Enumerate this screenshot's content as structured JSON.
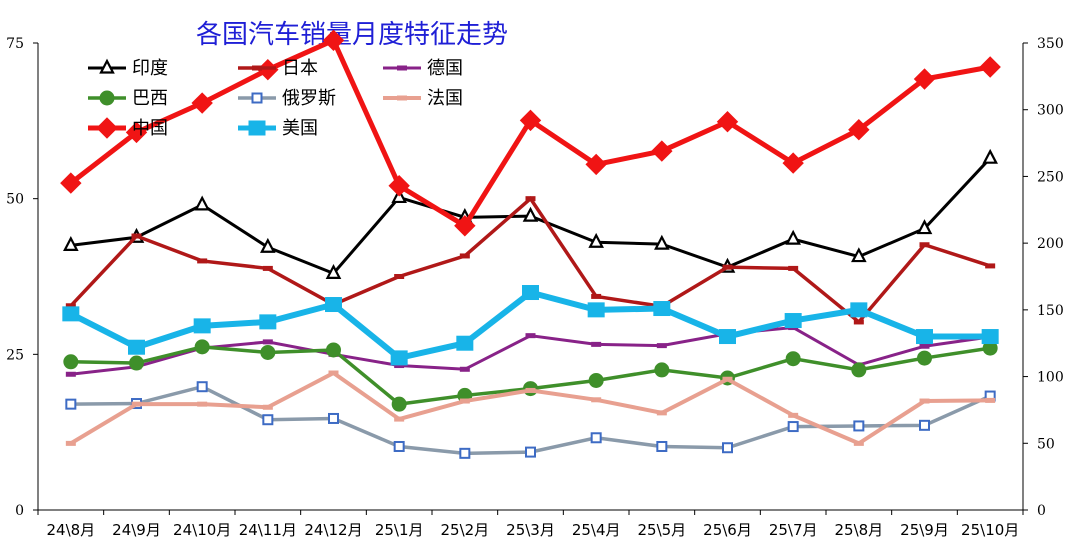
{
  "chart_data": {
    "type": "line",
    "title": "各国汽车销量月度特征走势",
    "categories": [
      "24\\8月",
      "24\\9月",
      "24\\10月",
      "24\\11月",
      "24\\12月",
      "25\\1月",
      "25\\2月",
      "25\\3月",
      "25\\4月",
      "25\\5月",
      "25\\6月",
      "25\\7月",
      "25\\8月",
      "25\\9月",
      "25\\10月"
    ],
    "y_left": {
      "min": 0,
      "max": 75,
      "ticks": [
        "0",
        "25",
        "50",
        "75"
      ]
    },
    "y_right": {
      "min": 0,
      "max": 350,
      "ticks": [
        "0",
        "50",
        "100",
        "150",
        "200",
        "250",
        "300",
        "350"
      ]
    },
    "legend_position": "top-left",
    "grid": false,
    "series": [
      {
        "name": "印度",
        "axis": "left",
        "color": "#000000",
        "marker": "triangle",
        "width": 3,
        "values": [
          42.5,
          43.8,
          49.0,
          42.2,
          38.0,
          50.2,
          47.0,
          47.2,
          43.0,
          42.7,
          39.0,
          43.5,
          40.7,
          45.2,
          56.5
        ]
      },
      {
        "name": "日本",
        "axis": "left",
        "color": "#b01818",
        "marker": "dash",
        "width": 3.5,
        "values": [
          32.8,
          44.0,
          40.0,
          38.8,
          33.0,
          37.5,
          40.8,
          50.0,
          34.3,
          32.7,
          39.0,
          38.8,
          30.2,
          42.6,
          39.2
        ]
      },
      {
        "name": "德国",
        "axis": "left",
        "color": "#882288",
        "marker": "dash",
        "width": 3,
        "values": [
          21.8,
          23.0,
          26.0,
          27.0,
          25.0,
          23.2,
          22.6,
          28.0,
          26.6,
          26.4,
          28.3,
          29.3,
          23.3,
          26.3,
          27.8
        ]
      },
      {
        "name": "巴西",
        "axis": "left",
        "color": "#3f8f2a",
        "marker": "circle",
        "width": 3.5,
        "values": [
          23.8,
          23.6,
          26.2,
          25.3,
          25.7,
          17.0,
          18.4,
          19.5,
          20.8,
          22.5,
          21.2,
          24.3,
          22.5,
          24.4,
          26.0
        ]
      },
      {
        "name": "俄罗斯",
        "axis": "left",
        "color": "#8a9aaa",
        "marker": "square",
        "width": 3.5,
        "values": [
          17.0,
          17.1,
          19.8,
          14.5,
          14.7,
          10.2,
          9.1,
          9.3,
          11.6,
          10.2,
          10.0,
          13.4,
          13.5,
          13.6,
          18.3
        ]
      },
      {
        "name": "法国",
        "axis": "left",
        "color": "#e8a090",
        "marker": "dash",
        "width": 4,
        "values": [
          10.7,
          17.0,
          17.0,
          16.5,
          22.0,
          14.6,
          17.5,
          19.2,
          17.7,
          15.6,
          21.0,
          15.2,
          10.7,
          17.5,
          17.6
        ]
      },
      {
        "name": "中国",
        "axis": "right",
        "color": "#f01414",
        "marker": "diamond",
        "width": 5,
        "values": [
          245,
          283,
          305,
          330,
          352,
          243,
          213,
          292,
          259,
          269,
          291,
          260,
          285,
          323,
          332
        ]
      },
      {
        "name": "美国",
        "axis": "right",
        "color": "#18b4e8",
        "marker": "square",
        "width": 6,
        "values": [
          147,
          122,
          138,
          141,
          154,
          114,
          125,
          163,
          150,
          151,
          130,
          142,
          150,
          130,
          130
        ]
      }
    ]
  }
}
